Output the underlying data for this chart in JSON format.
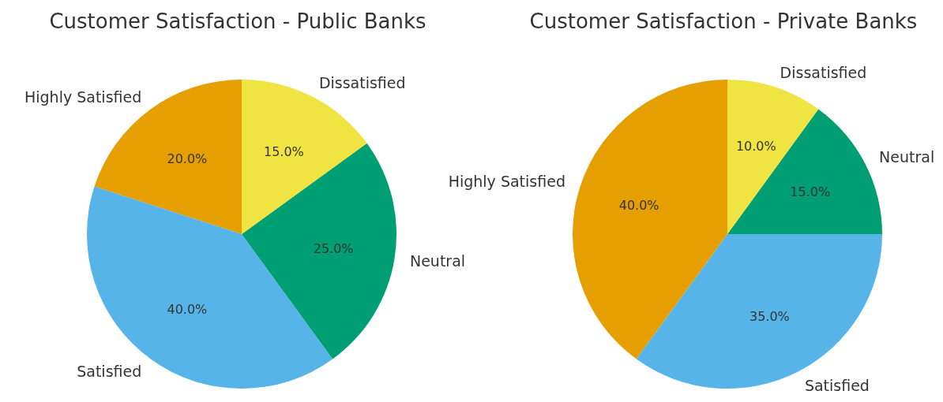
{
  "chart_data": [
    {
      "type": "pie",
      "title": "Customer Satisfaction - Public Banks",
      "categories": [
        "Highly Satisfied",
        "Satisfied",
        "Neutral",
        "Dissatisfied"
      ],
      "values": [
        20,
        40,
        25,
        15
      ],
      "colors": [
        "#e69f00",
        "#56b4e9",
        "#009e73",
        "#f0e442"
      ],
      "value_labels": [
        "20.0%",
        "40.0%",
        "25.0%",
        "15.0%"
      ],
      "legend": false
    },
    {
      "type": "pie",
      "title": "Customer Satisfaction - Private Banks",
      "categories": [
        "Highly Satisfied",
        "Satisfied",
        "Neutral",
        "Dissatisfied"
      ],
      "values": [
        40,
        35,
        15,
        10
      ],
      "colors": [
        "#e69f00",
        "#56b4e9",
        "#009e73",
        "#f0e442"
      ],
      "value_labels": [
        "40.0%",
        "35.0%",
        "15.0%",
        "10.0%"
      ],
      "legend": false
    }
  ]
}
